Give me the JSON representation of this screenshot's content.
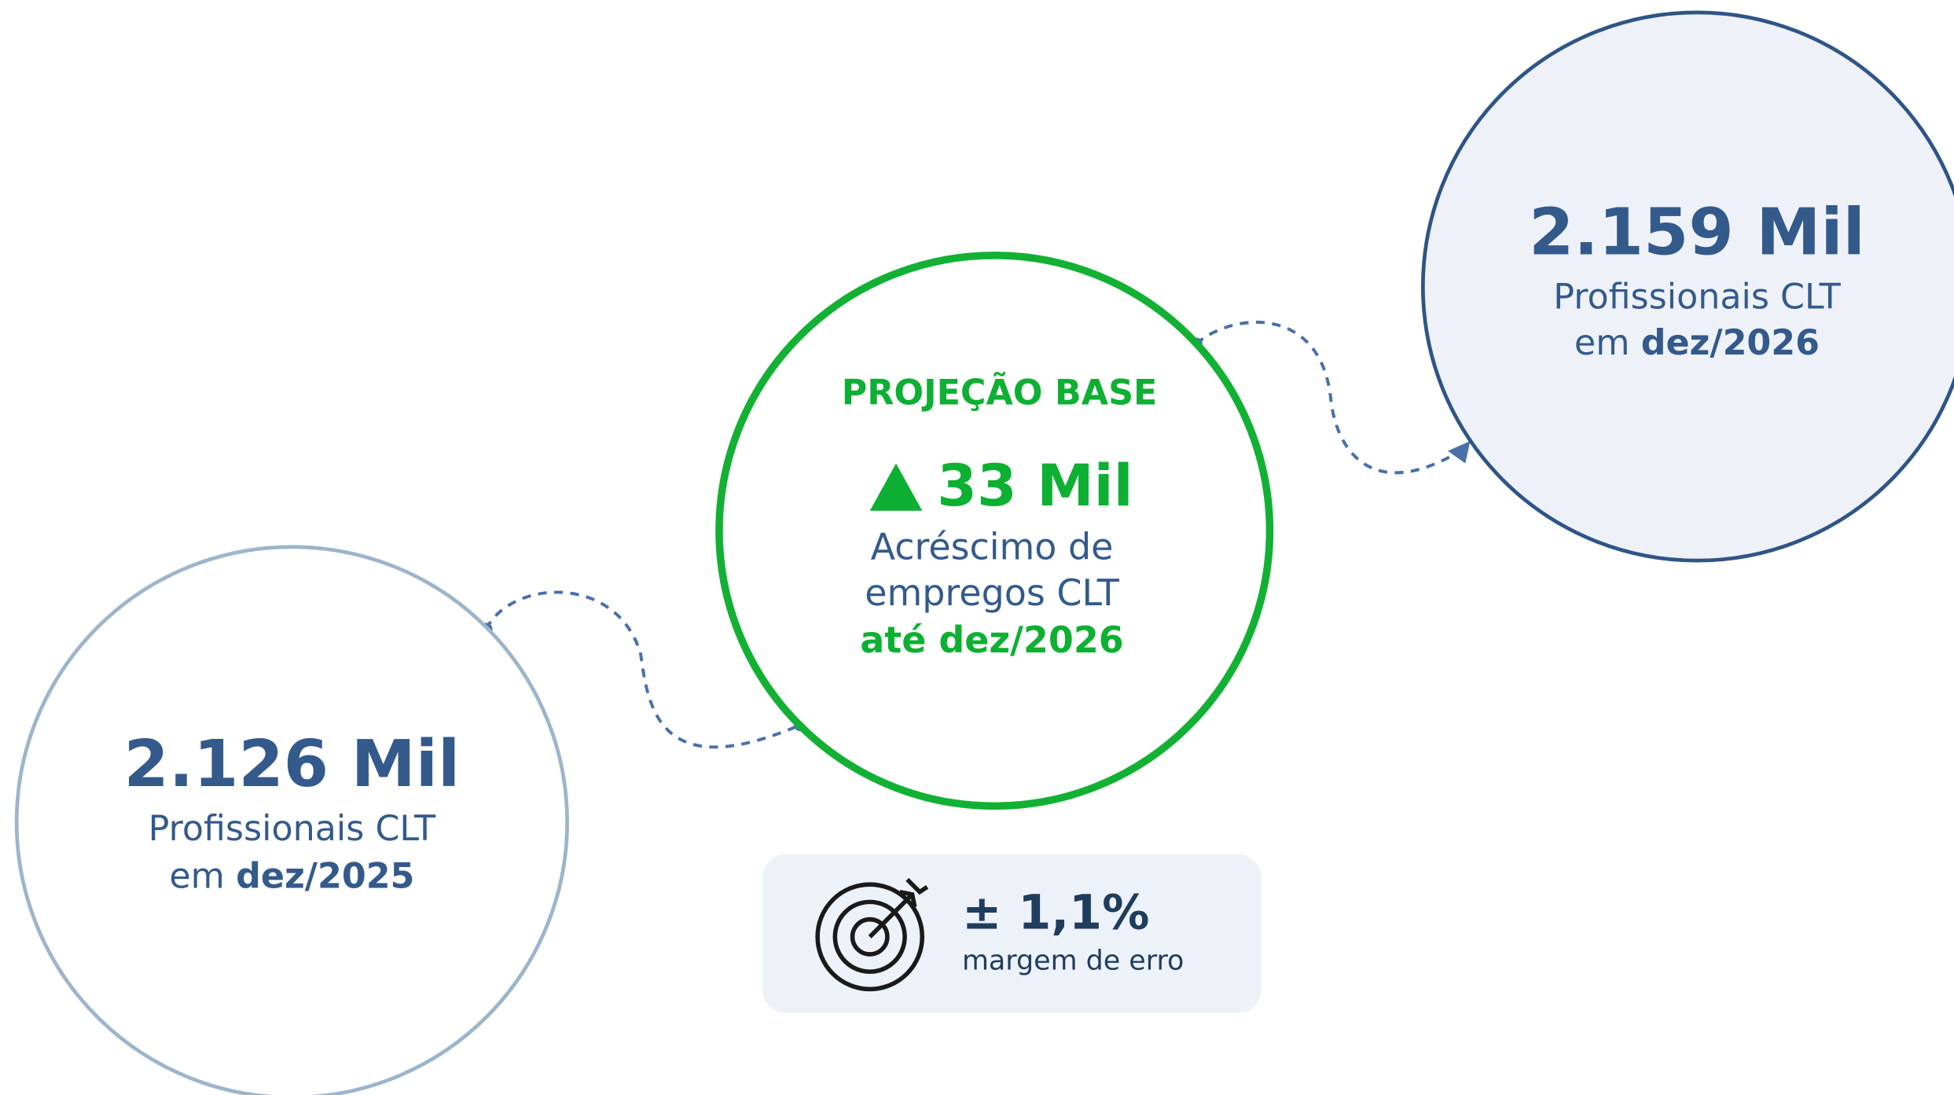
{
  "left": {
    "value": "2.126 Mil",
    "line1": "Profissionais CLT",
    "line2": "em",
    "line2_bold": "dez/2025"
  },
  "center": {
    "title": "PROJEÇÃO BASE",
    "value": "33 Mil",
    "line1": "Acréscimo de",
    "line2": "empregos CLT",
    "line3": "até dez/2026"
  },
  "right": {
    "value": "2.159 Mil",
    "line1": "Profissionais CLT",
    "line2": "em",
    "line2_bold": "dez/2026"
  },
  "margin": {
    "value": "± 1,1%",
    "label": "margem de erro"
  }
}
